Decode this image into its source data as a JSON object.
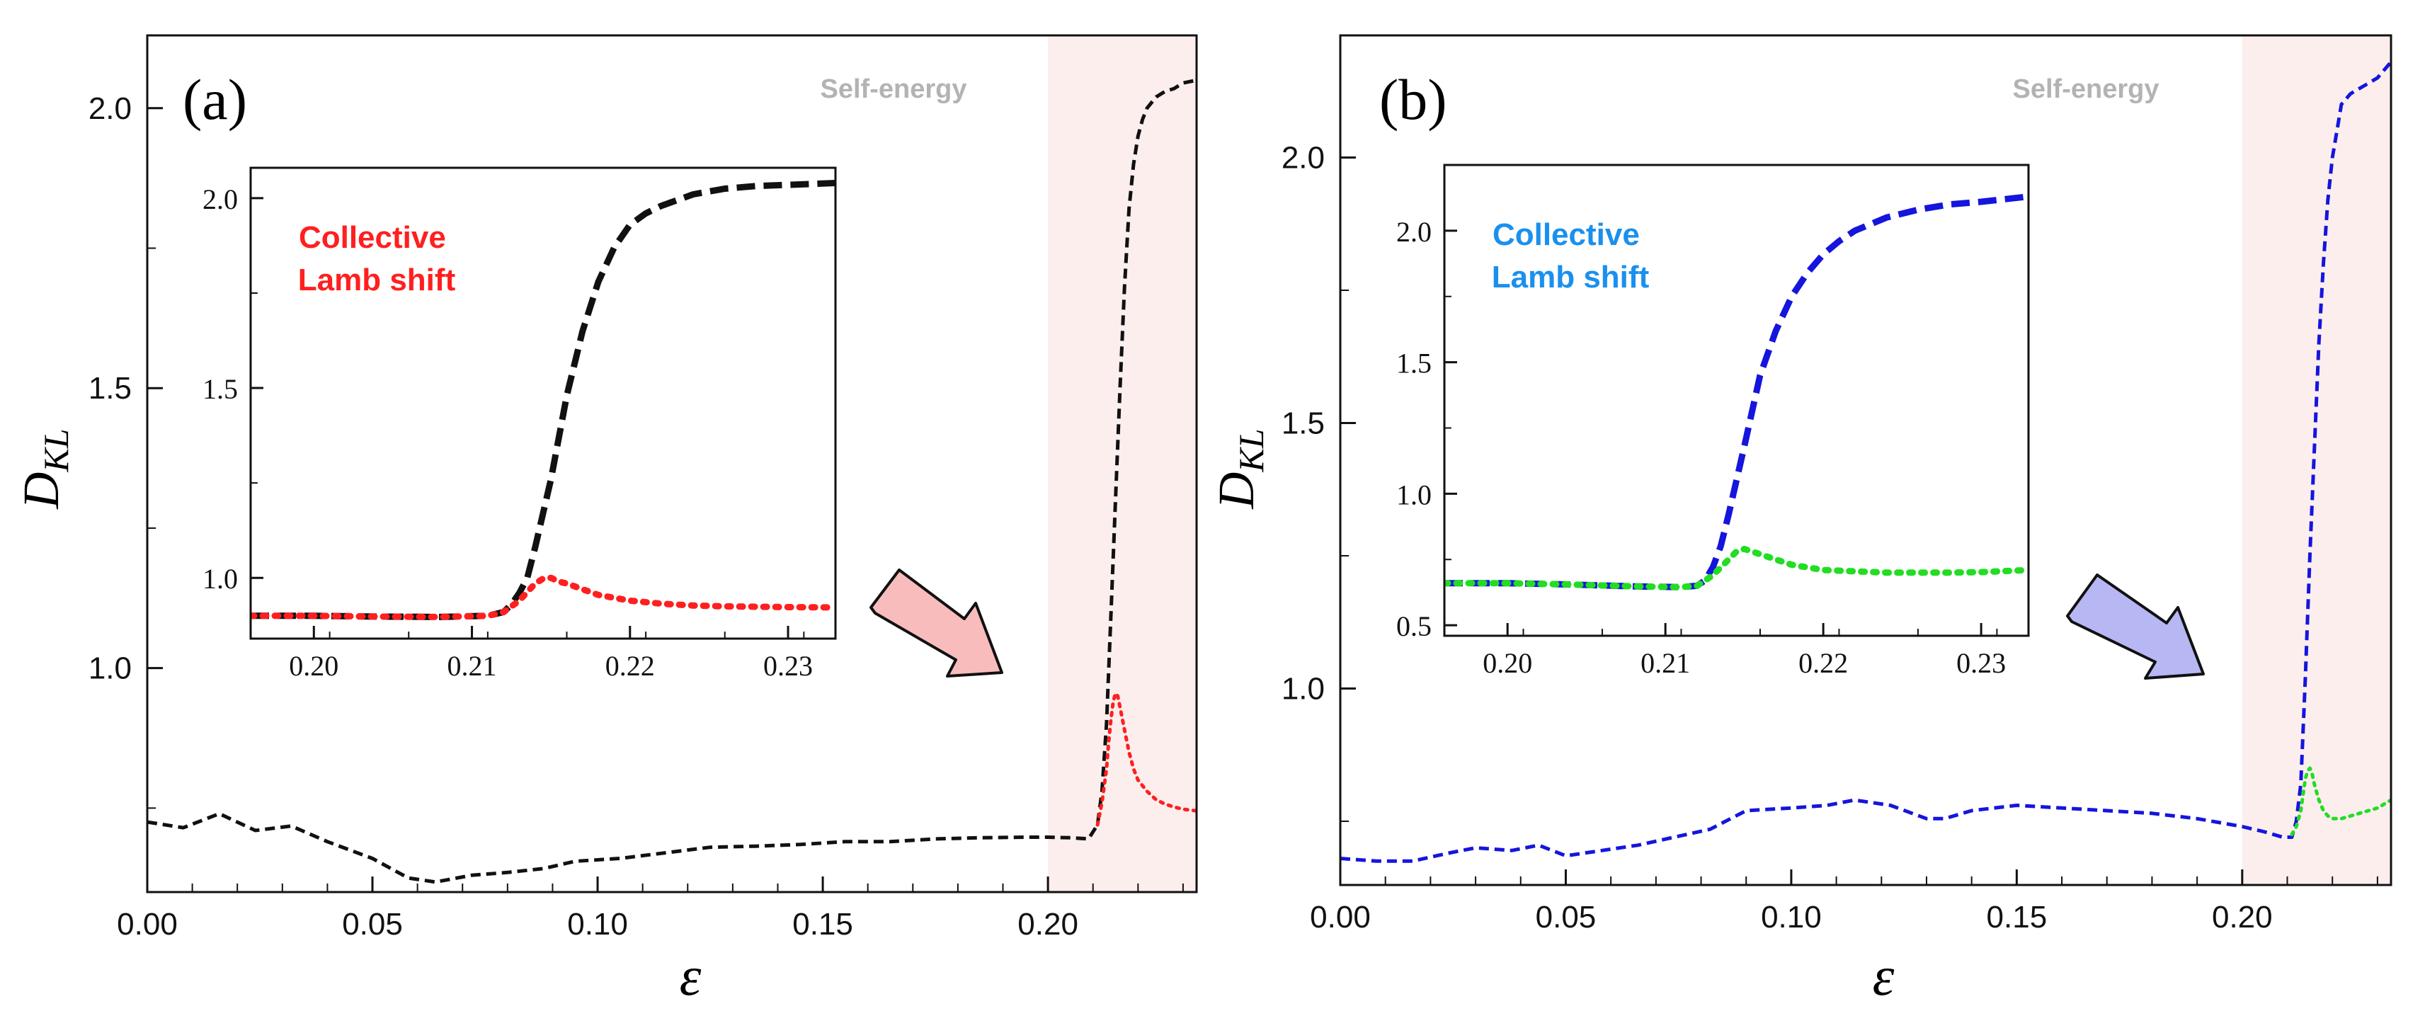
{
  "chart_data": [
    {
      "type": "line",
      "panel_label": "(a)",
      "xlabel": "ε",
      "ylabel_main": "D",
      "ylabel_sub": "KL",
      "xlim": [
        0,
        0.233
      ],
      "ylim": [
        0.6,
        2.13
      ],
      "xticks": [
        0.0,
        0.05,
        0.1,
        0.15,
        0.2
      ],
      "xtick_labels": [
        "0.00",
        "0.05",
        "0.10",
        "0.15",
        "0.20"
      ],
      "yticks": [
        1.0,
        1.5,
        2.0
      ],
      "ytick_labels": [
        "1.0",
        "1.5",
        "2.0"
      ],
      "shaded_region": {
        "x": [
          0.2,
          0.233
        ],
        "color": "#fdeeee",
        "label": "Self-energy"
      },
      "series": [
        {
          "name": "Self-energy",
          "style": "dashed",
          "color": "#111111",
          "x": [
            0,
            0.008,
            0.016,
            0.024,
            0.032,
            0.04,
            0.05,
            0.058,
            0.064,
            0.072,
            0.08,
            0.088,
            0.095,
            0.105,
            0.115,
            0.125,
            0.135,
            0.145,
            0.155,
            0.165,
            0.175,
            0.185,
            0.195,
            0.2,
            0.205,
            0.209,
            0.211,
            0.212,
            0.213,
            0.2135,
            0.214,
            0.215,
            0.216,
            0.217,
            0.218,
            0.219,
            0.22,
            0.221,
            0.222,
            0.224,
            0.226,
            0.228,
            0.23,
            0.233
          ],
          "y": [
            0.725,
            0.715,
            0.74,
            0.71,
            0.718,
            0.69,
            0.66,
            0.625,
            0.618,
            0.63,
            0.635,
            0.642,
            0.655,
            0.66,
            0.67,
            0.68,
            0.682,
            0.685,
            0.69,
            0.69,
            0.695,
            0.697,
            0.698,
            0.698,
            0.697,
            0.695,
            0.72,
            0.78,
            0.9,
            1.0,
            1.1,
            1.3,
            1.5,
            1.68,
            1.82,
            1.9,
            1.95,
            1.98,
            2.0,
            2.02,
            2.03,
            2.035,
            2.045,
            2.05
          ]
        },
        {
          "name": "Collective Lamb shift",
          "style": "dotted",
          "color": "#ff1f1f",
          "x": [
            0.211,
            0.212,
            0.213,
            0.2135,
            0.214,
            0.2145,
            0.215,
            0.2155,
            0.216,
            0.217,
            0.218,
            0.219,
            0.22,
            0.222,
            0.224,
            0.226,
            0.228,
            0.23,
            0.233
          ],
          "y": [
            0.72,
            0.76,
            0.82,
            0.87,
            0.91,
            0.94,
            0.955,
            0.95,
            0.93,
            0.89,
            0.85,
            0.82,
            0.8,
            0.78,
            0.765,
            0.757,
            0.752,
            0.748,
            0.745
          ]
        }
      ],
      "inset": {
        "xlim": [
          0.196,
          0.233
        ],
        "ylim": [
          0.84,
          2.08
        ],
        "xticks": [
          0.2,
          0.21,
          0.22,
          0.23
        ],
        "xtick_labels": [
          "0.20",
          "0.21",
          "0.22",
          "0.23"
        ],
        "yticks": [
          1.0,
          1.5,
          2.0
        ],
        "ytick_labels": [
          "1.0",
          "1.5",
          "2.0"
        ],
        "annotation": [
          "Collective",
          "Lamb shift"
        ],
        "annotation_color": "#ff1f1f",
        "series": [
          {
            "name": "Self-energy",
            "style": "dashed",
            "color": "#111111",
            "x": [
              0.196,
              0.2,
              0.204,
              0.208,
              0.211,
              0.212,
              0.2125,
              0.213,
              0.2135,
              0.214,
              0.215,
              0.216,
              0.217,
              0.218,
              0.219,
              0.22,
              0.221,
              0.222,
              0.224,
              0.226,
              0.228,
              0.23,
              0.233
            ],
            "y": [
              0.9,
              0.9,
              0.898,
              0.897,
              0.9,
              0.91,
              0.93,
              0.96,
              1.0,
              1.08,
              1.26,
              1.48,
              1.65,
              1.78,
              1.87,
              1.93,
              1.96,
              1.98,
              2.01,
              2.025,
              2.032,
              2.035,
              2.04
            ]
          },
          {
            "name": "Collective Lamb shift",
            "style": "dotted",
            "color": "#ff1f1f",
            "x": [
              0.196,
              0.2,
              0.204,
              0.208,
              0.211,
              0.212,
              0.213,
              0.214,
              0.2145,
              0.215,
              0.2155,
              0.216,
              0.217,
              0.218,
              0.22,
              0.222,
              0.224,
              0.226,
              0.228,
              0.23,
              0.233
            ],
            "y": [
              0.9,
              0.9,
              0.898,
              0.897,
              0.9,
              0.91,
              0.94,
              0.985,
              0.998,
              1.0,
              0.99,
              0.985,
              0.97,
              0.955,
              0.94,
              0.932,
              0.927,
              0.925,
              0.924,
              0.923,
              0.922
            ]
          }
        ]
      }
    },
    {
      "type": "line",
      "panel_label": "(b)",
      "xlabel": "ε",
      "ylabel_main": "D",
      "ylabel_sub": "KL",
      "xlim": [
        0,
        0.233
      ],
      "ylim": [
        0.63,
        2.23
      ],
      "xticks": [
        0.0,
        0.05,
        0.1,
        0.15,
        0.2
      ],
      "xtick_labels": [
        "0.00",
        "0.05",
        "0.10",
        "0.15",
        "0.20"
      ],
      "yticks": [
        1.0,
        1.5,
        2.0
      ],
      "ytick_labels": [
        "1.0",
        "1.5",
        "2.0"
      ],
      "shaded_region": {
        "x": [
          0.2,
          0.233
        ],
        "color": "#fdeeee",
        "label": "Self-energy"
      },
      "series": [
        {
          "name": "Self-energy",
          "style": "dashed",
          "color": "#1515dd",
          "x": [
            0,
            0.008,
            0.016,
            0.024,
            0.03,
            0.038,
            0.044,
            0.05,
            0.058,
            0.066,
            0.074,
            0.082,
            0.09,
            0.1,
            0.108,
            0.114,
            0.122,
            0.13,
            0.134,
            0.14,
            0.15,
            0.16,
            0.17,
            0.18,
            0.19,
            0.2,
            0.205,
            0.209,
            0.211,
            0.212,
            0.213,
            0.2135,
            0.214,
            0.215,
            0.216,
            0.217,
            0.218,
            0.219,
            0.22,
            0.221,
            0.222,
            0.224,
            0.226,
            0.228,
            0.23,
            0.233
          ],
          "y": [
            0.68,
            0.675,
            0.675,
            0.69,
            0.7,
            0.695,
            0.705,
            0.685,
            0.695,
            0.705,
            0.72,
            0.735,
            0.77,
            0.775,
            0.78,
            0.79,
            0.78,
            0.755,
            0.755,
            0.77,
            0.78,
            0.775,
            0.77,
            0.765,
            0.755,
            0.74,
            0.73,
            0.72,
            0.72,
            0.75,
            0.82,
            0.92,
            1.02,
            1.25,
            1.45,
            1.65,
            1.8,
            1.92,
            2.0,
            2.05,
            2.1,
            2.12,
            2.13,
            2.14,
            2.15,
            2.18
          ]
        },
        {
          "name": "Collective Lamb shift",
          "style": "dotted",
          "color": "#22dd22",
          "x": [
            0.211,
            0.212,
            0.213,
            0.2135,
            0.214,
            0.2145,
            0.215,
            0.2155,
            0.216,
            0.217,
            0.218,
            0.219,
            0.22,
            0.222,
            0.224,
            0.226,
            0.228,
            0.23,
            0.233
          ],
          "y": [
            0.725,
            0.74,
            0.77,
            0.8,
            0.83,
            0.845,
            0.85,
            0.84,
            0.82,
            0.79,
            0.77,
            0.76,
            0.755,
            0.755,
            0.76,
            0.765,
            0.77,
            0.775,
            0.79
          ]
        }
      ],
      "inset": {
        "xlim": [
          0.196,
          0.233
        ],
        "ylim": [
          0.46,
          2.25
        ],
        "xticks": [
          0.2,
          0.21,
          0.22,
          0.23
        ],
        "xtick_labels": [
          "0.20",
          "0.21",
          "0.22",
          "0.23"
        ],
        "yticks": [
          0.5,
          1.0,
          1.5,
          2.0
        ],
        "ytick_labels": [
          "0.5",
          "1.0",
          "1.5",
          "2.0"
        ],
        "annotation": [
          "Collective",
          "Lamb shift"
        ],
        "annotation_color": "#1a90ee",
        "series": [
          {
            "name": "Self-energy",
            "style": "dashed",
            "color": "#1515dd",
            "x": [
              0.196,
              0.2,
              0.204,
              0.208,
              0.211,
              0.212,
              0.2125,
              0.213,
              0.2135,
              0.214,
              0.215,
              0.216,
              0.217,
              0.218,
              0.219,
              0.22,
              0.221,
              0.222,
              0.224,
              0.226,
              0.228,
              0.23,
              0.233
            ],
            "y": [
              0.66,
              0.66,
              0.655,
              0.648,
              0.645,
              0.65,
              0.67,
              0.72,
              0.8,
              0.92,
              1.18,
              1.45,
              1.62,
              1.75,
              1.84,
              1.91,
              1.96,
              2.0,
              2.05,
              2.08,
              2.1,
              2.11,
              2.13
            ]
          },
          {
            "name": "Collective Lamb shift",
            "style": "dotted",
            "color": "#22dd22",
            "x": [
              0.196,
              0.2,
              0.204,
              0.208,
              0.211,
              0.212,
              0.213,
              0.214,
              0.2145,
              0.215,
              0.2155,
              0.216,
              0.217,
              0.218,
              0.219,
              0.22,
              0.222,
              0.224,
              0.226,
              0.228,
              0.23,
              0.233
            ],
            "y": [
              0.66,
              0.66,
              0.655,
              0.648,
              0.645,
              0.65,
              0.69,
              0.75,
              0.78,
              0.79,
              0.78,
              0.77,
              0.75,
              0.73,
              0.72,
              0.71,
              0.705,
              0.7,
              0.7,
              0.7,
              0.702,
              0.71
            ]
          }
        ]
      }
    }
  ],
  "colors": {
    "shade": "#fdeeee",
    "arrow_a_fill": "#f9bcbc",
    "arrow_b_fill": "#b7b7f4",
    "self_energy_label": "#b3b3b3"
  }
}
